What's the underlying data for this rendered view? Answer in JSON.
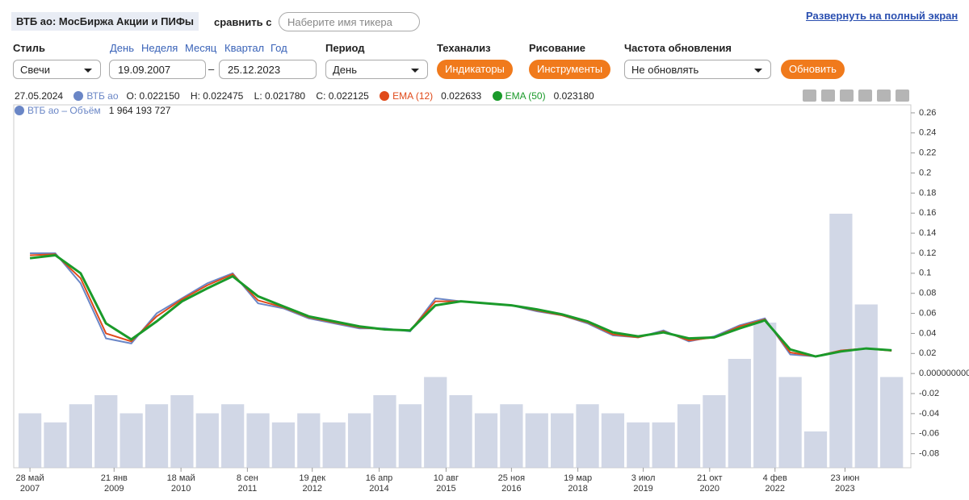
{
  "header": {
    "title": "ВТБ ао: МосБиржа Акции и ПИФы",
    "compare_label": "сравнить с",
    "compare_placeholder": "Наберите имя тикера",
    "fullscreen_link": "Развернуть на полный экран"
  },
  "controls": {
    "style_label": "Стиль",
    "style_value": "Свечи",
    "range_links": [
      "День",
      "Неделя",
      "Месяц",
      "Квартал",
      "Год"
    ],
    "date_from": "19.09.2007",
    "date_sep": "–",
    "date_to": "25.12.2023",
    "period_label": "Период",
    "period_value": "День",
    "ta_label": "Теханализ",
    "ta_button": "Индикаторы",
    "draw_label": "Рисование",
    "draw_button": "Инструменты",
    "refresh_label": "Частота обновления",
    "refresh_value": "Не обновлять",
    "refresh_button": "Обновить"
  },
  "legend": {
    "date": "27.05.2024",
    "open": "O: 0.022150",
    "high": "H: 0.022475",
    "low": "L: 0.021780",
    "close": "C: 0.022125",
    "ema12_value": "0.022633",
    "ema50_value": "0.023180",
    "volume_value": "1 964 193 727"
  },
  "chart_data": {
    "type": "line",
    "x": [
      2007.4,
      2007.9,
      2008.4,
      2008.9,
      2009.4,
      2009.9,
      2010.4,
      2010.9,
      2011.4,
      2011.9,
      2012.4,
      2012.9,
      2013.4,
      2013.9,
      2014.4,
      2014.9,
      2015.4,
      2015.9,
      2016.4,
      2016.9,
      2017.4,
      2017.9,
      2018.4,
      2018.9,
      2019.4,
      2019.9,
      2020.4,
      2020.9,
      2021.4,
      2021.9,
      2022.4,
      2022.9,
      2023.4,
      2023.9,
      2024.4
    ],
    "series": [
      {
        "name": "ВТБ ао",
        "color": "#6a86c6",
        "values": [
          0.12,
          0.12,
          0.09,
          0.035,
          0.03,
          0.06,
          0.075,
          0.09,
          0.1,
          0.07,
          0.065,
          0.055,
          0.05,
          0.045,
          0.045,
          0.042,
          0.075,
          0.072,
          0.07,
          0.068,
          0.062,
          0.058,
          0.05,
          0.038,
          0.036,
          0.043,
          0.032,
          0.037,
          0.048,
          0.055,
          0.019,
          0.017,
          0.023,
          0.025,
          0.023
        ]
      },
      {
        "name": "EMA (12)",
        "color": "#e04a1a",
        "values": [
          0.118,
          0.119,
          0.095,
          0.04,
          0.032,
          0.057,
          0.074,
          0.088,
          0.099,
          0.073,
          0.066,
          0.056,
          0.051,
          0.046,
          0.044,
          0.043,
          0.072,
          0.072,
          0.07,
          0.068,
          0.063,
          0.058,
          0.051,
          0.039,
          0.036,
          0.042,
          0.033,
          0.036,
          0.047,
          0.054,
          0.021,
          0.017,
          0.023,
          0.025,
          0.0226
        ]
      },
      {
        "name": "EMA (50)",
        "color": "#1a9a2a",
        "values": [
          0.115,
          0.118,
          0.1,
          0.05,
          0.034,
          0.052,
          0.072,
          0.085,
          0.097,
          0.077,
          0.067,
          0.057,
          0.052,
          0.047,
          0.044,
          0.043,
          0.068,
          0.072,
          0.07,
          0.068,
          0.064,
          0.059,
          0.052,
          0.041,
          0.037,
          0.041,
          0.035,
          0.036,
          0.045,
          0.053,
          0.024,
          0.017,
          0.022,
          0.025,
          0.0232
        ]
      },
      {
        "name": "ВТБ ао – Объём",
        "color": "#c5cde0",
        "axis": "y2",
        "values": [
          3000000000,
          2500000000,
          3500000000,
          4000000000,
          3000000000,
          3500000000,
          4000000000,
          3000000000,
          3500000000,
          3000000000,
          2500000000,
          3000000000,
          2500000000,
          3000000000,
          4000000000,
          3500000000,
          5000000000,
          4000000000,
          3000000000,
          3500000000,
          3000000000,
          3000000000,
          3500000000,
          3000000000,
          2500000000,
          2500000000,
          3500000000,
          4000000000,
          6000000000,
          8000000000,
          5000000000,
          2000000000,
          14000000000,
          9000000000,
          5000000000
        ]
      }
    ],
    "xlim": [
      2007.08,
      2024.78
    ],
    "xticks": [
      {
        "value": 2007.4,
        "label": "28 май\n2007"
      },
      {
        "value": 2009.06,
        "label": "21 янв\n2009"
      },
      {
        "value": 2010.38,
        "label": "18 май\n2010"
      },
      {
        "value": 2011.69,
        "label": "8 сен\n2011"
      },
      {
        "value": 2012.97,
        "label": "19 дек\n2012"
      },
      {
        "value": 2014.29,
        "label": "16 апр\n2014"
      },
      {
        "value": 2015.61,
        "label": "10 авг\n2015"
      },
      {
        "value": 2016.9,
        "label": "25 ноя\n2016"
      },
      {
        "value": 2018.21,
        "label": "19 мар\n2018"
      },
      {
        "value": 2019.5,
        "label": "3 июл\n2019"
      },
      {
        "value": 2020.81,
        "label": "21 окт\n2020"
      },
      {
        "value": 2022.1,
        "label": "4 фев\n2022"
      },
      {
        "value": 2023.48,
        "label": "23 июн\n2023"
      }
    ],
    "ylim": [
      -0.094,
      0.268
    ],
    "yticks": [
      0.26,
      0.24,
      0.22,
      0.2,
      0.18,
      0.16,
      0.14,
      0.12,
      0.1,
      0.08,
      0.06,
      0.04,
      0.02,
      {
        "value": 0,
        "label": "0.000000000"
      },
      -0.02,
      -0.04,
      -0.06,
      -0.08
    ],
    "y2lim": [
      0,
      20000000000
    ]
  }
}
